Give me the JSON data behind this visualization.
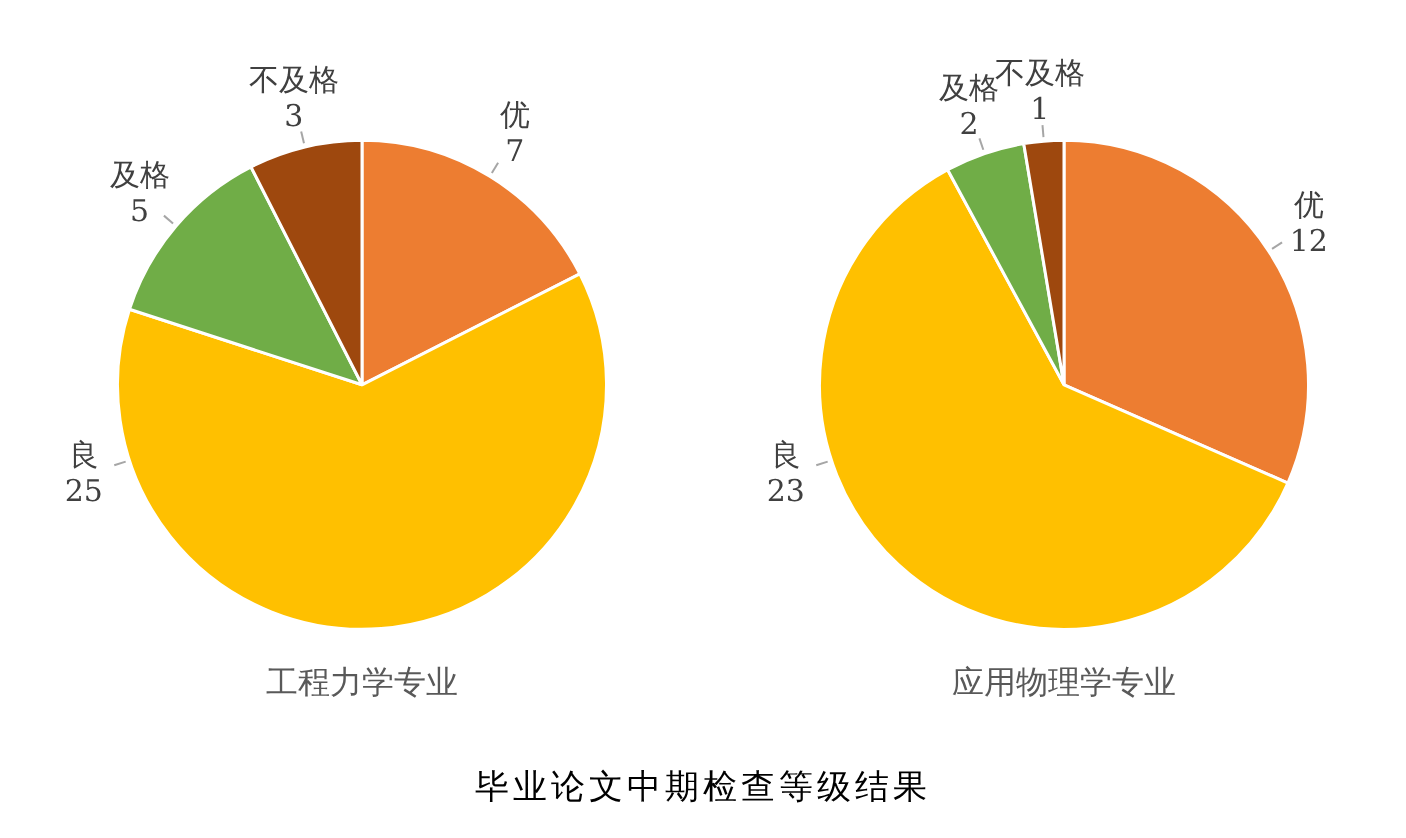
{
  "chart_data": [
    {
      "type": "pie",
      "title": "工程力学专业",
      "categories": [
        "优",
        "良",
        "及格",
        "不及格"
      ],
      "values": [
        7,
        25,
        5,
        3
      ],
      "colors": [
        "#ed7d31",
        "#ffc000",
        "#70ad47",
        "#9e480e"
      ],
      "data_labels": true,
      "legend": false,
      "annotations": [
        "毕业论文中期检查等级结果"
      ]
    },
    {
      "type": "pie",
      "title": "应用物理学专业",
      "categories": [
        "优",
        "良",
        "及格",
        "不及格"
      ],
      "values": [
        12,
        23,
        2,
        1
      ],
      "colors": [
        "#ed7d31",
        "#ffc000",
        "#70ad47",
        "#9e480e"
      ],
      "data_labels": true,
      "legend": false
    }
  ]
}
